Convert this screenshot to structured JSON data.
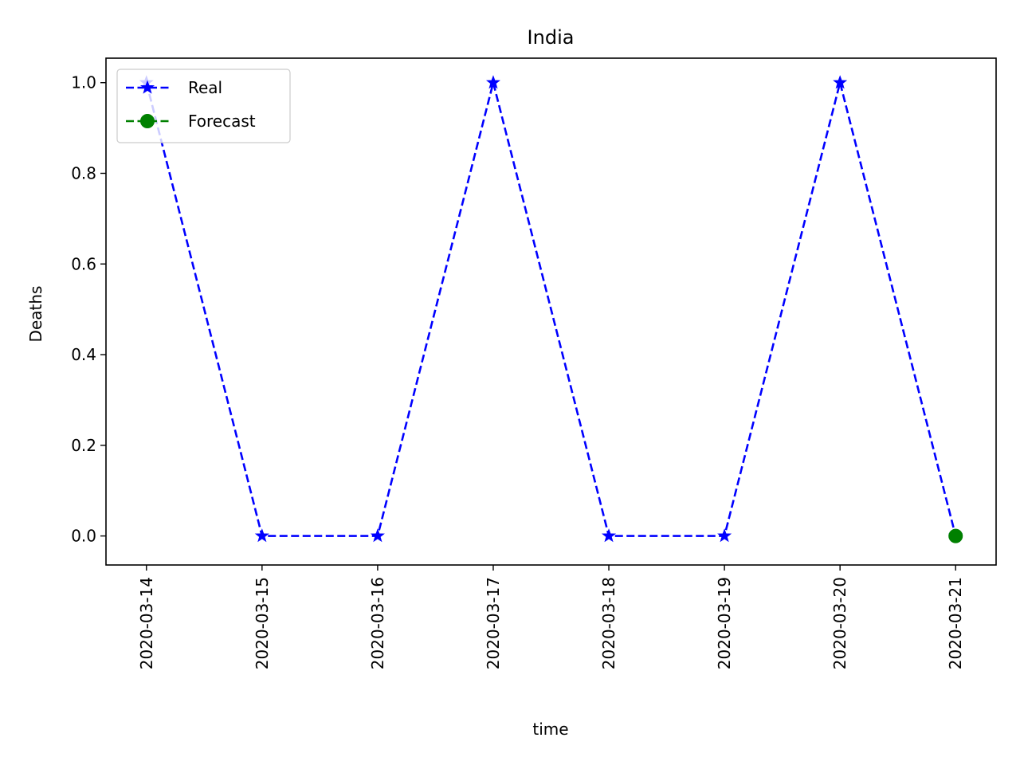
{
  "chart_data": {
    "type": "line",
    "title": "India",
    "xlabel": "time",
    "ylabel": "Deaths",
    "categories": [
      "2020-03-14",
      "2020-03-15",
      "2020-03-16",
      "2020-03-17",
      "2020-03-18",
      "2020-03-19",
      "2020-03-20",
      "2020-03-21"
    ],
    "series": [
      {
        "name": "Real",
        "x": [
          "2020-03-14",
          "2020-03-15",
          "2020-03-16",
          "2020-03-17",
          "2020-03-18",
          "2020-03-19",
          "2020-03-20",
          "2020-03-21"
        ],
        "values": [
          1,
          0,
          0,
          1,
          0,
          0,
          1,
          0
        ],
        "color": "#0000ff",
        "line_style": "dashed",
        "marker": "star"
      },
      {
        "name": "Forecast",
        "x": [
          "2020-03-21"
        ],
        "values": [
          0
        ],
        "color": "#008000",
        "line_style": "dashed",
        "marker": "circle"
      }
    ],
    "yticks": [
      0.0,
      0.2,
      0.4,
      0.6,
      0.8,
      1.0
    ],
    "ylim": [
      -0.064,
      1.054
    ],
    "grid": false,
    "legend_position": "top-left"
  }
}
